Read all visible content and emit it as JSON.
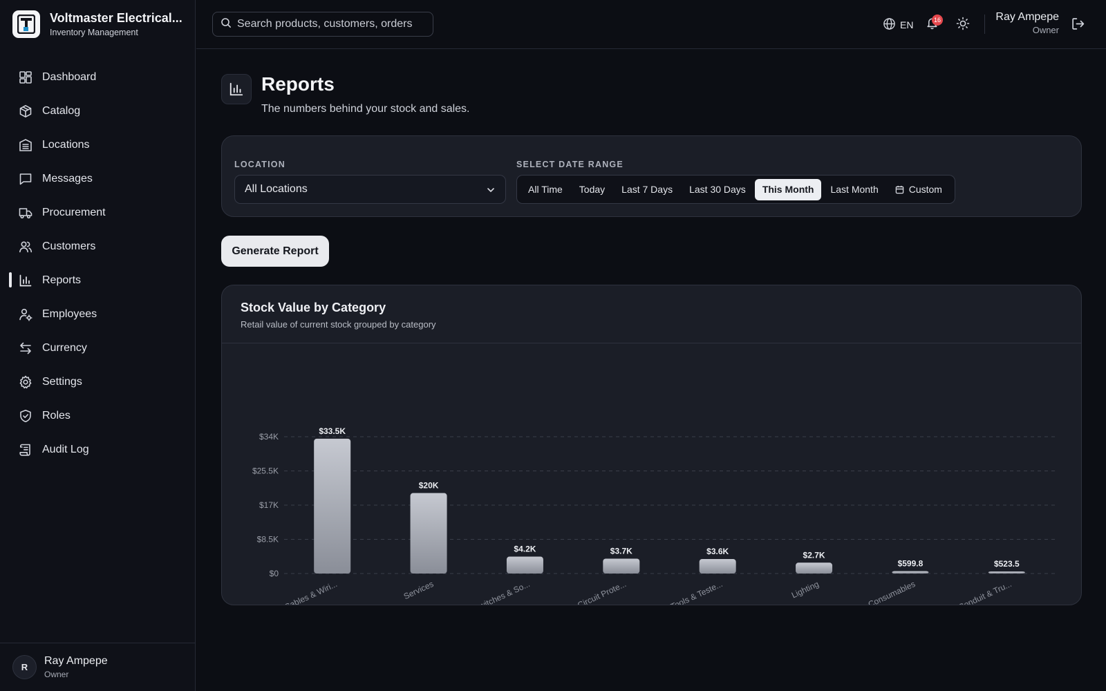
{
  "brand": {
    "name": "Voltmaster Electrical...",
    "subtitle": "Inventory Management"
  },
  "sidebar": {
    "items": [
      {
        "label": "Dashboard",
        "icon": "dashboard-icon"
      },
      {
        "label": "Catalog",
        "icon": "box-icon"
      },
      {
        "label": "Locations",
        "icon": "building-icon"
      },
      {
        "label": "Messages",
        "icon": "message-icon"
      },
      {
        "label": "Procurement",
        "icon": "truck-icon"
      },
      {
        "label": "Customers",
        "icon": "users-icon"
      },
      {
        "label": "Reports",
        "icon": "bar-chart-icon",
        "active": true
      },
      {
        "label": "Employees",
        "icon": "user-cog-icon"
      },
      {
        "label": "Currency",
        "icon": "arrows-swap-icon"
      },
      {
        "label": "Settings",
        "icon": "gear-icon"
      },
      {
        "label": "Roles",
        "icon": "shield-icon"
      },
      {
        "label": "Audit Log",
        "icon": "scroll-icon"
      }
    ],
    "user": {
      "initial": "R",
      "name": "Ray Ampepe",
      "role": "Owner"
    }
  },
  "topbar": {
    "search_placeholder": "Search products, customers, orders",
    "language": "EN",
    "notification_count": "16",
    "user": {
      "name": "Ray Ampepe",
      "role": "Owner"
    }
  },
  "page": {
    "title": "Reports",
    "subtitle": "The numbers behind your stock and sales."
  },
  "filters": {
    "location_label": "LOCATION",
    "location_value": "All Locations",
    "date_label": "SELECT DATE RANGE",
    "ranges": [
      "All Time",
      "Today",
      "Last 7 Days",
      "Last 30 Days",
      "This Month",
      "Last Month",
      "Custom"
    ],
    "active_range": "This Month"
  },
  "actions": {
    "generate_label": "Generate Report"
  },
  "chart": {
    "title": "Stock Value by Category",
    "subtitle": "Retail value of current stock grouped by category"
  },
  "chart_data": {
    "type": "bar",
    "title": "Stock Value by Category",
    "subtitle": "Retail value of current stock grouped by category",
    "categories": [
      "Cables & Wiri...",
      "Services",
      "Switches & So...",
      "Circuit Prote...",
      "Tools & Teste...",
      "Lighting",
      "Consumables",
      "Conduit & Tru..."
    ],
    "values": [
      33500,
      20000,
      4200,
      3700,
      3600,
      2700,
      599.8,
      523.5
    ],
    "value_labels": [
      "$33.5K",
      "$20K",
      "$4.2K",
      "$3.7K",
      "$3.6K",
      "$2.7K",
      "$599.8",
      "$523.5"
    ],
    "y_ticks": [
      0,
      8500,
      17000,
      25500,
      34000
    ],
    "y_tick_labels": [
      "$0",
      "$8.5K",
      "$17K",
      "$25.5K",
      "$34K"
    ],
    "ylim": [
      0,
      34000
    ],
    "grid": true,
    "bar_color": "#b9bcc5",
    "xlabel": "",
    "ylabel": ""
  }
}
